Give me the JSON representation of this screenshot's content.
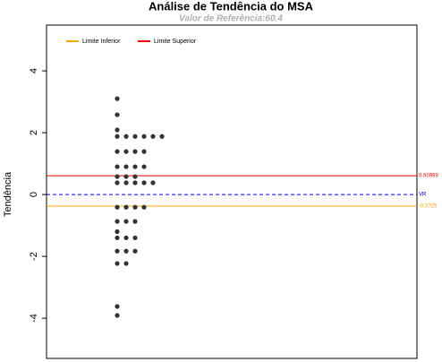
{
  "chart_data": {
    "type": "scatter",
    "title": "Análise de Tendência do MSA",
    "subtitle": "Valor de Referência:60.4",
    "y_label": "Tendência",
    "series": [
      {
        "color": "#333333",
        "x": [
          1,
          1,
          1,
          1,
          2,
          3,
          4,
          5,
          6,
          1,
          2,
          3,
          4,
          1,
          2,
          3,
          4,
          1,
          2,
          3,
          1,
          2,
          3,
          4,
          5,
          1,
          2,
          3,
          4,
          1,
          2,
          3,
          1,
          1,
          2,
          3,
          1,
          2,
          3,
          1,
          2,
          1,
          1
        ],
        "values": [
          3.1,
          2.58,
          2.09,
          1.88,
          1.88,
          1.88,
          1.88,
          1.88,
          1.88,
          1.39,
          1.39,
          1.39,
          1.39,
          0.9,
          0.9,
          0.9,
          0.9,
          0.58,
          0.58,
          0.58,
          0.38,
          0.38,
          0.38,
          0.38,
          0.38,
          -0.41,
          -0.41,
          -0.41,
          -0.41,
          -0.87,
          -0.87,
          -0.87,
          -1.2,
          -1.4,
          -1.4,
          -1.4,
          -1.83,
          -1.83,
          -1.83,
          -2.23,
          -2.23,
          -3.62,
          -3.91
        ]
      }
    ],
    "reference_lines": [
      {
        "name": "Limite Inferior",
        "value": -0.3725,
        "label": "-0.3725",
        "color": "#ffa500",
        "dashed": false
      },
      {
        "name": "Limite Superior",
        "value": 0.60969,
        "label": "0.60969",
        "color": "#ff0000",
        "dashed": false
      },
      {
        "value": 0,
        "label": "VR",
        "color": "#0000ff",
        "dashed": true
      }
    ],
    "xlim": [
      -6.9,
      34.5
    ],
    "ylim": [
      -5.3,
      5.48
    ],
    "yticks": [
      -4,
      -2,
      0,
      2,
      4
    ],
    "legend": "top-left"
  }
}
